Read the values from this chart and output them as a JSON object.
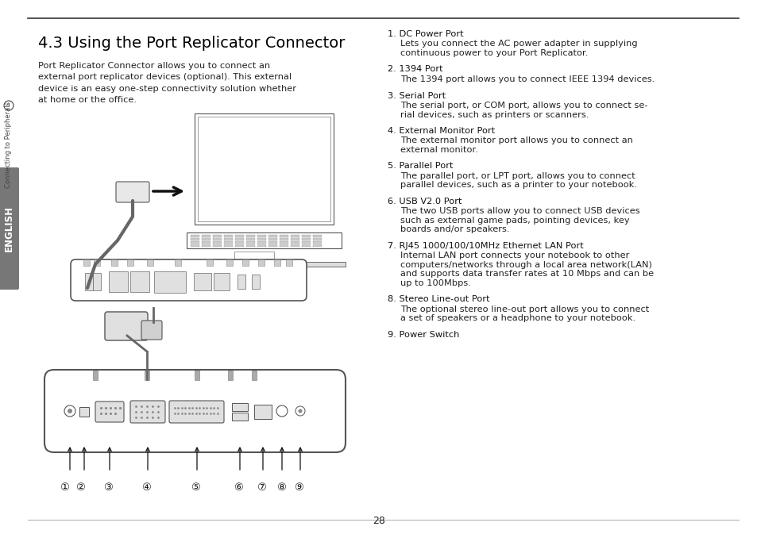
{
  "page_bg": "#ffffff",
  "title": "4.3 Using the Port Replicator Connector",
  "body_left": "Port Replicator Connector allows you to connect an\nexternal port replicator devices (optional). This external\ndevice is an easy one-step connectivity solution whether\nat home or the office.",
  "right_items": [
    {
      "num": "1.",
      "title": "DC Power Port",
      "desc": "    Lets you connect the AC power adapter in supplying\n    continuous power to your Port Replicator."
    },
    {
      "num": "2.",
      "title": "1394 Port",
      "desc": "    The 1394 port allows you to connect IEEE 1394 devices."
    },
    {
      "num": "3.",
      "title": "Serial Port",
      "desc": "    The serial port, or COM port, allows you to connect se-\n    rial devices, such as printers or scanners."
    },
    {
      "num": "4.",
      "title": "External Monitor Port",
      "desc": "    The external monitor port allows you to connect an\n    external monitor."
    },
    {
      "num": "5.",
      "title": "Parallel Port",
      "desc": "    The parallel port, or LPT port, allows you to connect\n    parallel devices, such as a printer to your notebook."
    },
    {
      "num": "6.",
      "title": "USB V2.0 Port",
      "desc": "    The two USB ports allow you to connect USB devices\n    such as external game pads, pointing devices, key\n    boards and/or speakers."
    },
    {
      "num": "7.",
      "title": "RJ45 1000/100/10MHz Ethernet LAN Port",
      "desc": "    Internal LAN port connects your notebook to other\n    computers/networks through a local area network(LAN)\n    and supports data transfer rates at 10 Mbps and can be\n    up to 100Mbps."
    },
    {
      "num": "8.",
      "title": "Stereo Line-out Port",
      "desc": "    The optional stereo line-out port allows you to connect\n    a set of speakers or a headphone to your notebook."
    },
    {
      "num": "9.",
      "title": "Power Switch",
      "desc": ""
    }
  ],
  "sidebar_color": "#777777",
  "sidebar_text": "ENGLISH",
  "sidebar_label": "Connecting to Peripherals",
  "page_number": "28",
  "body_fontsize": 8.2,
  "title_fontsize": 14.0
}
